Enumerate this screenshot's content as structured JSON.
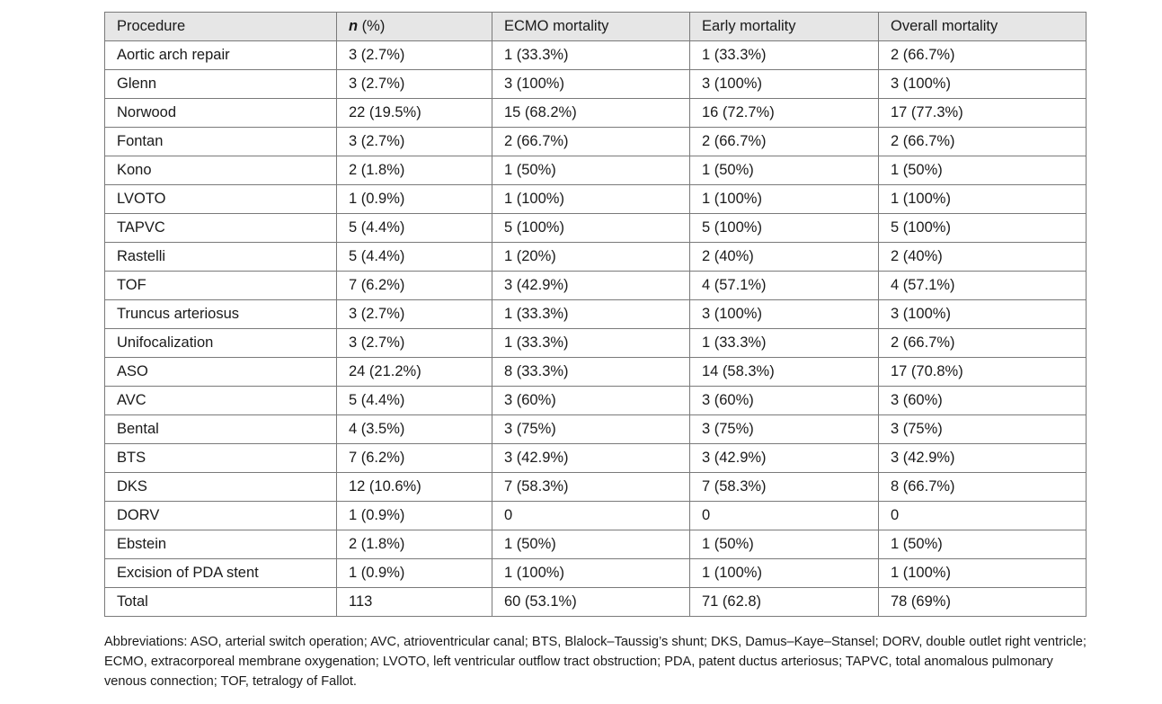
{
  "table": {
    "headers": {
      "procedure": "Procedure",
      "n_symbol": "n",
      "n_rest": " (%)",
      "ecmo": "ECMO mortality",
      "early": "Early mortality",
      "overall": "Overall mortality"
    },
    "rows": [
      [
        "Aortic arch repair",
        "3 (2.7%)",
        "1 (33.3%)",
        "1 (33.3%)",
        "2 (66.7%)"
      ],
      [
        "Glenn",
        "3 (2.7%)",
        "3 (100%)",
        "3 (100%)",
        "3 (100%)"
      ],
      [
        "Norwood",
        "22 (19.5%)",
        "15 (68.2%)",
        "16 (72.7%)",
        "17 (77.3%)"
      ],
      [
        "Fontan",
        "3 (2.7%)",
        "2 (66.7%)",
        "2 (66.7%)",
        "2 (66.7%)"
      ],
      [
        "Kono",
        "2 (1.8%)",
        "1 (50%)",
        "1 (50%)",
        "1 (50%)"
      ],
      [
        "LVOTO",
        "1 (0.9%)",
        "1 (100%)",
        "1 (100%)",
        "1 (100%)"
      ],
      [
        "TAPVC",
        "5 (4.4%)",
        "5 (100%)",
        "5 (100%)",
        "5 (100%)"
      ],
      [
        "Rastelli",
        "5 (4.4%)",
        "1 (20%)",
        "2 (40%)",
        "2 (40%)"
      ],
      [
        "TOF",
        "7 (6.2%)",
        "3 (42.9%)",
        "4 (57.1%)",
        "4 (57.1%)"
      ],
      [
        "Truncus arteriosus",
        "3 (2.7%)",
        "1 (33.3%)",
        "3 (100%)",
        "3 (100%)"
      ],
      [
        "Unifocalization",
        "3 (2.7%)",
        "1 (33.3%)",
        "1 (33.3%)",
        "2 (66.7%)"
      ],
      [
        "ASO",
        "24 (21.2%)",
        "8 (33.3%)",
        "14 (58.3%)",
        "17 (70.8%)"
      ],
      [
        "AVC",
        "5 (4.4%)",
        "3 (60%)",
        "3 (60%)",
        "3 (60%)"
      ],
      [
        "Bental",
        "4 (3.5%)",
        "3 (75%)",
        "3 (75%)",
        "3 (75%)"
      ],
      [
        "BTS",
        "7 (6.2%)",
        "3 (42.9%)",
        "3 (42.9%)",
        "3 (42.9%)"
      ],
      [
        "DKS",
        "12 (10.6%)",
        "7 (58.3%)",
        "7 (58.3%)",
        "8 (66.7%)"
      ],
      [
        "DORV",
        "1 (0.9%)",
        "0",
        "0",
        "0"
      ],
      [
        "Ebstein",
        "2 (1.8%)",
        "1 (50%)",
        "1 (50%)",
        "1 (50%)"
      ],
      [
        "Excision of PDA stent",
        "1 (0.9%)",
        "1 (100%)",
        "1 (100%)",
        "1 (100%)"
      ],
      [
        "Total",
        "113",
        "60 (53.1%)",
        "71 (62.8)",
        "78 (69%)"
      ]
    ]
  },
  "footnote": "Abbreviations: ASO, arterial switch operation; AVC, atrioventricular canal; BTS, Blalock–Taussig’s shunt; DKS, Damus–Kaye–Stansel; DORV, double outlet right ventricle; ECMO, extracorporeal membrane oxygenation; LVOTO, left ventricular outflow tract obstruction; PDA, patent ductus arteriosus; TAPVC, total anomalous pulmonary venous connection; TOF, tetralogy of Fallot."
}
